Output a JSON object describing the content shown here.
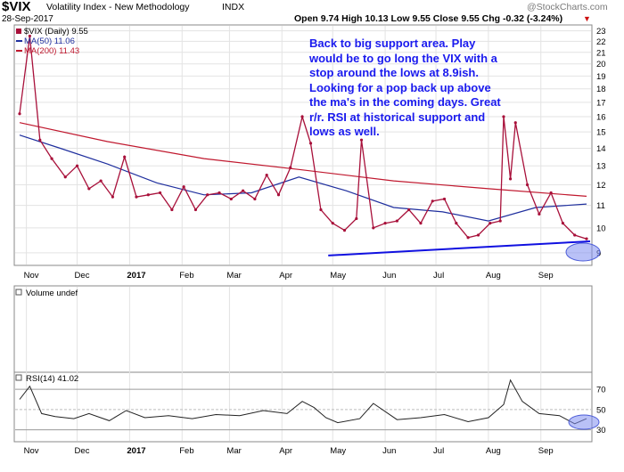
{
  "header": {
    "symbol": "$VIX",
    "name": "Volatility Index - New Methodology",
    "exchange": "INDX",
    "date": "28-Sep-2017",
    "ohlc": "Open 9.74  High 10.13  Low 9.55  Close 9.55  Chg -0.32 (-3.24%)",
    "ohlc_arrow": "▼",
    "watermark": "@StockCharts.com"
  },
  "legend": {
    "price": "$VIX (Daily) 9.55",
    "ma50": "MA(50) 11.06",
    "ma200": "MA(200) 11.43"
  },
  "annotation": "Back to big support area.  Play\nwould be to go long the VIX with a\nstop around the lows at 8.9ish.\nLooking for a pop back up above\nthe ma's in the coming days.  Great\nr/r. RSI at historical support and\nlows as well.",
  "volume_label": "Volume undef",
  "rsi_label": "RSI(14) 41.02",
  "colors": {
    "price": "#a8103a",
    "ma50": "#1f2f9e",
    "ma200": "#c0182e",
    "support": "#1010e0",
    "annotation": "#1a1aee",
    "rsi": "#222222",
    "grid": "#e3e3e3"
  },
  "chart_data": [
    {
      "type": "line",
      "panel": "price",
      "title": "$VIX Volatility Index - New Methodology INDX",
      "y_scale": "log",
      "ylim": [
        8.6,
        23.4
      ],
      "y_ticks": [
        9,
        10,
        11,
        12,
        13,
        14,
        15,
        16,
        17,
        18,
        19,
        20,
        21,
        22,
        23
      ],
      "x_labels": [
        "Nov",
        "Dec",
        "2017",
        "Feb",
        "Mar",
        "Apr",
        "May",
        "Jun",
        "Jul",
        "Aug",
        "Sep"
      ],
      "series": [
        {
          "name": "$VIX (Daily)",
          "x": [
            "2016-10-28",
            "2016-11-03",
            "2016-11-09",
            "2016-11-16",
            "2016-11-24",
            "2016-12-01",
            "2016-12-08",
            "2016-12-15",
            "2016-12-22",
            "2016-12-29",
            "2017-01-05",
            "2017-01-12",
            "2017-01-19",
            "2017-01-26",
            "2017-02-02",
            "2017-02-09",
            "2017-02-16",
            "2017-02-23",
            "2017-03-02",
            "2017-03-09",
            "2017-03-16",
            "2017-03-23",
            "2017-03-30",
            "2017-04-06",
            "2017-04-13",
            "2017-04-18",
            "2017-04-24",
            "2017-05-01",
            "2017-05-08",
            "2017-05-15",
            "2017-05-18",
            "2017-05-25",
            "2017-06-01",
            "2017-06-08",
            "2017-06-15",
            "2017-06-22",
            "2017-06-29",
            "2017-07-06",
            "2017-07-13",
            "2017-07-20",
            "2017-07-26",
            "2017-08-02",
            "2017-08-08",
            "2017-08-10",
            "2017-08-14",
            "2017-08-17",
            "2017-08-24",
            "2017-08-31",
            "2017-09-07",
            "2017-09-14",
            "2017-09-21",
            "2017-09-28"
          ],
          "values": [
            16.2,
            22.5,
            14.5,
            13.4,
            12.4,
            13.0,
            11.8,
            12.2,
            11.4,
            13.5,
            11.4,
            11.5,
            11.6,
            10.8,
            11.9,
            10.8,
            11.5,
            11.6,
            11.3,
            11.7,
            11.3,
            12.5,
            11.5,
            12.9,
            16.0,
            14.3,
            10.8,
            10.2,
            9.9,
            10.4,
            14.5,
            10.0,
            10.2,
            10.3,
            10.8,
            10.2,
            11.2,
            11.3,
            10.2,
            9.6,
            9.7,
            10.2,
            10.3,
            16.0,
            12.3,
            15.6,
            12.0,
            10.6,
            11.6,
            10.2,
            9.7,
            9.55
          ]
        },
        {
          "name": "MA(50)",
          "x": [
            "2016-10-28",
            "2016-11-21",
            "2016-12-19",
            "2017-01-17",
            "2017-02-14",
            "2017-03-14",
            "2017-04-11",
            "2017-05-09",
            "2017-06-06",
            "2017-07-05",
            "2017-08-01",
            "2017-08-29",
            "2017-09-28"
          ],
          "values": [
            14.8,
            14.0,
            13.1,
            12.1,
            11.5,
            11.6,
            12.4,
            11.7,
            10.9,
            10.7,
            10.3,
            10.9,
            11.06
          ]
        },
        {
          "name": "MA(200)",
          "x": [
            "2016-10-28",
            "2016-12-19",
            "2017-02-14",
            "2017-04-11",
            "2017-06-06",
            "2017-08-01",
            "2017-09-28"
          ],
          "values": [
            15.6,
            14.4,
            13.4,
            12.8,
            12.2,
            11.8,
            11.43
          ]
        }
      ],
      "trendline": {
        "x": [
          "2017-05-01",
          "2017-09-28"
        ],
        "values": [
          8.9,
          9.45
        ]
      }
    },
    {
      "type": "line",
      "panel": "rsi",
      "title": "RSI(14) 41.02",
      "ylim": [
        20,
        85
      ],
      "y_ticks": [
        30,
        50,
        70
      ],
      "reference_lines": [
        30,
        70
      ],
      "x_labels": [
        "Nov",
        "Dec",
        "2017",
        "Feb",
        "Mar",
        "Apr",
        "May",
        "Jun",
        "Jul",
        "Aug",
        "Sep"
      ],
      "series": [
        {
          "name": "RSI(14)",
          "x": [
            "2016-10-28",
            "2016-11-03",
            "2016-11-10",
            "2016-11-18",
            "2016-11-29",
            "2016-12-08",
            "2016-12-20",
            "2016-12-30",
            "2017-01-10",
            "2017-01-24",
            "2017-02-07",
            "2017-02-21",
            "2017-03-07",
            "2017-03-21",
            "2017-04-04",
            "2017-04-13",
            "2017-04-20",
            "2017-04-27",
            "2017-05-04",
            "2017-05-17",
            "2017-05-25",
            "2017-06-08",
            "2017-06-22",
            "2017-07-06",
            "2017-07-20",
            "2017-08-01",
            "2017-08-10",
            "2017-08-14",
            "2017-08-21",
            "2017-08-31",
            "2017-09-12",
            "2017-09-21",
            "2017-09-28"
          ],
          "values": [
            60,
            73,
            46,
            43,
            41,
            46,
            39,
            49,
            42,
            44,
            41,
            45,
            44,
            49,
            46,
            58,
            52,
            42,
            37,
            41,
            56,
            40,
            42,
            45,
            38,
            42,
            55,
            79,
            58,
            46,
            44,
            36,
            41.02
          ]
        }
      ]
    }
  ]
}
